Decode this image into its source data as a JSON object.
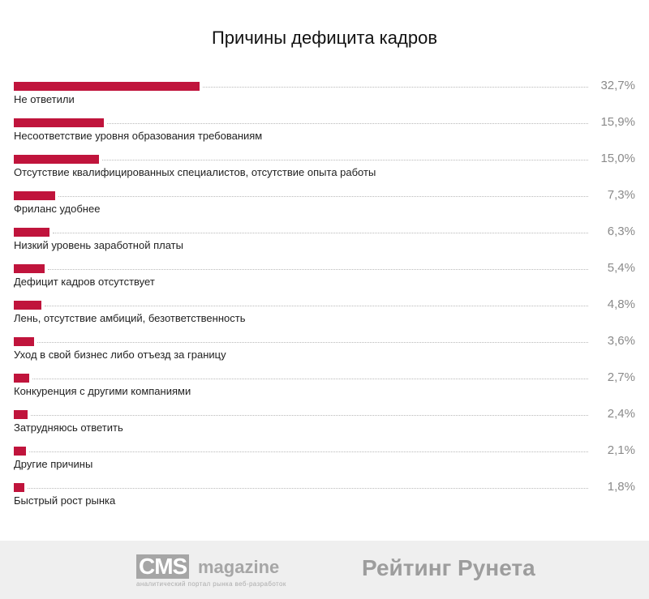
{
  "chart_data": {
    "type": "bar",
    "orientation": "horizontal",
    "title": "Причины дефицита кадров",
    "bar_color": "#c0143c",
    "xlim": [
      0,
      100
    ],
    "categories": [
      "Не ответили",
      "Несоответствие уровня образования требованиям",
      "Отсутствие квалифицированных специалистов, отсутствие опыта работы",
      "Фриланс удобнее",
      "Низкий уровень заработной платы",
      "Дефицит кадров отсутствует",
      "Лень, отсутствие амбиций, безответственность",
      "Уход в свой бизнес либо отъезд за границу",
      "Конкуренция с другими компаниями",
      "Затрудняюсь ответить",
      "Другие причины",
      "Быстрый рост рынка"
    ],
    "values": [
      32.7,
      15.9,
      15.0,
      7.3,
      6.3,
      5.4,
      4.8,
      3.6,
      2.7,
      2.4,
      2.1,
      1.8
    ],
    "value_labels": [
      "32,7%",
      "15,9%",
      "15,0%",
      "7,3%",
      "6,3%",
      "5,4%",
      "4,8%",
      "3,6%",
      "2,7%",
      "2,4%",
      "2,1%",
      "1,8%"
    ]
  },
  "footer": {
    "cms_logo_main": "CMS",
    "cms_logo_magazine": "magazine",
    "cms_logo_tagline": "аналитический портал рынка веб-разработок",
    "rating_logo": "Рейтинг Рунета"
  }
}
